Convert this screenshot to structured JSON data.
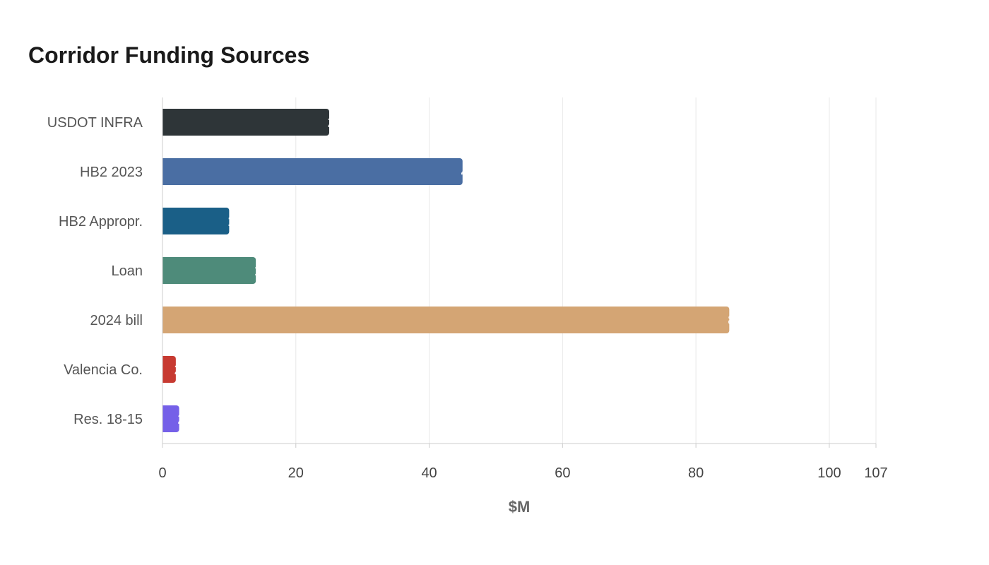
{
  "chart_data": {
    "type": "bar",
    "orientation": "horizontal",
    "title": "Corridor Funding Sources",
    "xlabel": "$M",
    "ylabel": "",
    "categories": [
      "USDOT INFRA",
      "HB2 2023",
      "HB2 Appropr.",
      "Loan",
      "2024 bill",
      "Valencia Co.",
      "Res. 18-15"
    ],
    "values": [
      25,
      45,
      10,
      14,
      85,
      2,
      2.5
    ],
    "colors": [
      "#2e3538",
      "#4a6ea3",
      "#1a5f87",
      "#4e8b7a",
      "#d4a574",
      "#c73a31",
      "#7560e8"
    ],
    "xlim": [
      0,
      107
    ],
    "xticks": [
      0,
      20,
      40,
      60,
      80,
      100,
      107
    ],
    "grid": "vertical",
    "legend": "none"
  }
}
